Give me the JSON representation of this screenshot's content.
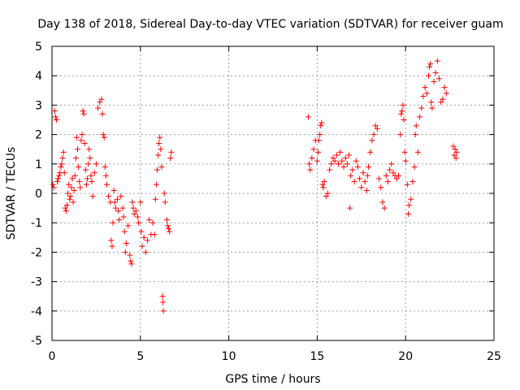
{
  "chart_data": {
    "type": "scatter",
    "title": "Day 138 of 2018, Sidereal Day-to-day VTEC variation (SDTVAR) for receiver guam",
    "xlabel": "GPS time / hours",
    "ylabel": "SDTVAR / TECUs",
    "xlim": [
      0,
      25
    ],
    "ylim": [
      -5,
      5
    ],
    "xticks": [
      0,
      5,
      10,
      15,
      20,
      25
    ],
    "yticks": [
      -5,
      -4,
      -3,
      -2,
      -1,
      0,
      1,
      2,
      3,
      4,
      5
    ],
    "xtick_labels": [
      "0",
      "5",
      "10",
      "15",
      "20",
      "25"
    ],
    "ytick_labels": [
      "-5",
      "-4",
      "-3",
      "-2",
      "-1",
      "0",
      "1",
      "2",
      "3",
      "4",
      "5"
    ],
    "grid": true,
    "marker": "plus",
    "color": "#ff0000",
    "series": [
      {
        "name": "SDTVAR",
        "points": [
          [
            0.05,
            0.3
          ],
          [
            0.1,
            0.2
          ],
          [
            0.15,
            2.8
          ],
          [
            0.2,
            2.6
          ],
          [
            0.25,
            2.5
          ],
          [
            0.3,
            0.4
          ],
          [
            0.35,
            0.5
          ],
          [
            0.4,
            0.6
          ],
          [
            0.45,
            0.7
          ],
          [
            0.5,
            0.9
          ],
          [
            0.55,
            1.0
          ],
          [
            0.6,
            1.2
          ],
          [
            0.65,
            1.4
          ],
          [
            0.7,
            0.7
          ],
          [
            0.75,
            -0.5
          ],
          [
            0.8,
            -0.6
          ],
          [
            0.85,
            -0.4
          ],
          [
            0.9,
            0.0
          ],
          [
            0.95,
            0.3
          ],
          [
            1.0,
            -0.2
          ],
          [
            1.05,
            -0.1
          ],
          [
            1.1,
            0.2
          ],
          [
            1.15,
            0.5
          ],
          [
            1.2,
            -0.3
          ],
          [
            1.25,
            0.1
          ],
          [
            1.3,
            0.6
          ],
          [
            1.35,
            1.2
          ],
          [
            1.4,
            1.9
          ],
          [
            1.45,
            1.5
          ],
          [
            1.5,
            0.9
          ],
          [
            1.55,
            0.4
          ],
          [
            1.6,
            0.2
          ],
          [
            1.65,
            1.8
          ],
          [
            1.7,
            2.0
          ],
          [
            1.75,
            2.8
          ],
          [
            1.8,
            2.7
          ],
          [
            1.85,
            1.7
          ],
          [
            1.9,
            0.8
          ],
          [
            1.95,
            0.3
          ],
          [
            2.0,
            0.5
          ],
          [
            2.05,
            1.0
          ],
          [
            2.1,
            1.5
          ],
          [
            2.15,
            1.2
          ],
          [
            2.2,
            0.6
          ],
          [
            2.25,
            0.4
          ],
          [
            2.3,
            -0.1
          ],
          [
            2.4,
            0.7
          ],
          [
            2.5,
            1.0
          ],
          [
            2.6,
            2.9
          ],
          [
            2.7,
            3.1
          ],
          [
            2.8,
            3.2
          ],
          [
            2.85,
            2.7
          ],
          [
            2.9,
            2.0
          ],
          [
            2.95,
            1.9
          ],
          [
            3.0,
            0.9
          ],
          [
            3.05,
            0.6
          ],
          [
            3.1,
            0.3
          ],
          [
            3.2,
            -0.1
          ],
          [
            3.3,
            -0.3
          ],
          [
            3.35,
            -1.6
          ],
          [
            3.4,
            -1.8
          ],
          [
            3.45,
            -1.0
          ],
          [
            3.5,
            0.1
          ],
          [
            3.55,
            -0.3
          ],
          [
            3.6,
            -0.5
          ],
          [
            3.7,
            -0.2
          ],
          [
            3.75,
            -0.6
          ],
          [
            3.8,
            -0.9
          ],
          [
            3.9,
            -0.1
          ],
          [
            4.0,
            -0.5
          ],
          [
            4.05,
            -0.8
          ],
          [
            4.1,
            -1.3
          ],
          [
            4.15,
            -2.0
          ],
          [
            4.2,
            -1.7
          ],
          [
            4.3,
            -1.1
          ],
          [
            4.4,
            -2.1
          ],
          [
            4.45,
            -2.3
          ],
          [
            4.5,
            -2.4
          ],
          [
            4.55,
            -0.3
          ],
          [
            4.6,
            -0.5
          ],
          [
            4.65,
            -0.7
          ],
          [
            4.75,
            -0.6
          ],
          [
            4.85,
            -0.8
          ],
          [
            4.9,
            -1.0
          ],
          [
            5.0,
            -0.3
          ],
          [
            5.05,
            -1.3
          ],
          [
            5.1,
            -1.8
          ],
          [
            5.2,
            -1.5
          ],
          [
            5.3,
            -2.0
          ],
          [
            5.4,
            -1.6
          ],
          [
            5.5,
            -0.9
          ],
          [
            5.6,
            -1.4
          ],
          [
            5.7,
            -1.0
          ],
          [
            5.8,
            -1.4
          ],
          [
            5.85,
            -0.2
          ],
          [
            5.9,
            0.3
          ],
          [
            5.95,
            0.8
          ],
          [
            6.0,
            1.3
          ],
          [
            6.05,
            1.7
          ],
          [
            6.1,
            1.9
          ],
          [
            6.15,
            1.5
          ],
          [
            6.2,
            0.9
          ],
          [
            6.25,
            -3.5
          ],
          [
            6.28,
            -3.7
          ],
          [
            6.3,
            -4.0
          ],
          [
            6.35,
            0.0
          ],
          [
            6.4,
            -0.3
          ],
          [
            6.5,
            -0.9
          ],
          [
            6.55,
            -1.1
          ],
          [
            6.6,
            -1.2
          ],
          [
            6.65,
            -1.3
          ],
          [
            6.7,
            1.2
          ],
          [
            6.75,
            1.4
          ],
          [
            14.5,
            2.6
          ],
          [
            14.55,
            1.0
          ],
          [
            14.6,
            0.8
          ],
          [
            14.7,
            1.2
          ],
          [
            14.8,
            1.5
          ],
          [
            14.9,
            1.8
          ],
          [
            15.0,
            1.1
          ],
          [
            15.05,
            1.4
          ],
          [
            15.1,
            1.8
          ],
          [
            15.15,
            2.0
          ],
          [
            15.2,
            2.3
          ],
          [
            15.25,
            2.4
          ],
          [
            15.3,
            0.3
          ],
          [
            15.35,
            0.2
          ],
          [
            15.4,
            0.4
          ],
          [
            15.5,
            -0.1
          ],
          [
            15.6,
            0.0
          ],
          [
            15.7,
            0.8
          ],
          [
            15.8,
            1.0
          ],
          [
            15.9,
            1.2
          ],
          [
            16.0,
            1.1
          ],
          [
            16.1,
            1.3
          ],
          [
            16.2,
            1.0
          ],
          [
            16.3,
            1.4
          ],
          [
            16.4,
            1.1
          ],
          [
            16.5,
            0.9
          ],
          [
            16.6,
            1.2
          ],
          [
            16.7,
            1.0
          ],
          [
            16.8,
            1.3
          ],
          [
            16.85,
            -0.5
          ],
          [
            16.9,
            0.6
          ],
          [
            17.0,
            0.8
          ],
          [
            17.1,
            0.4
          ],
          [
            17.2,
            1.1
          ],
          [
            17.3,
            0.9
          ],
          [
            17.4,
            0.5
          ],
          [
            17.5,
            0.2
          ],
          [
            17.6,
            0.7
          ],
          [
            17.7,
            0.4
          ],
          [
            17.8,
            0.1
          ],
          [
            17.85,
            0.6
          ],
          [
            17.9,
            0.9
          ],
          [
            18.0,
            1.4
          ],
          [
            18.1,
            1.8
          ],
          [
            18.2,
            2.0
          ],
          [
            18.3,
            2.3
          ],
          [
            18.4,
            2.2
          ],
          [
            18.5,
            0.5
          ],
          [
            18.6,
            0.2
          ],
          [
            18.7,
            -0.3
          ],
          [
            18.8,
            -0.5
          ],
          [
            18.9,
            0.6
          ],
          [
            19.0,
            0.4
          ],
          [
            19.1,
            0.8
          ],
          [
            19.2,
            1.0
          ],
          [
            19.3,
            0.7
          ],
          [
            19.4,
            0.6
          ],
          [
            19.5,
            0.5
          ],
          [
            19.6,
            0.6
          ],
          [
            19.7,
            2.0
          ],
          [
            19.75,
            2.7
          ],
          [
            19.8,
            2.8
          ],
          [
            19.85,
            3.0
          ],
          [
            19.9,
            2.5
          ],
          [
            19.95,
            1.4
          ],
          [
            20.0,
            1.1
          ],
          [
            20.1,
            0.3
          ],
          [
            20.15,
            -0.7
          ],
          [
            20.2,
            -0.4
          ],
          [
            20.3,
            -0.2
          ],
          [
            20.4,
            0.4
          ],
          [
            20.5,
            0.9
          ],
          [
            20.55,
            2.0
          ],
          [
            20.6,
            2.3
          ],
          [
            20.7,
            1.4
          ],
          [
            20.8,
            2.6
          ],
          [
            20.9,
            2.9
          ],
          [
            21.0,
            3.3
          ],
          [
            21.1,
            3.6
          ],
          [
            21.2,
            3.4
          ],
          [
            21.3,
            4.0
          ],
          [
            21.35,
            4.3
          ],
          [
            21.4,
            4.4
          ],
          [
            21.45,
            3.1
          ],
          [
            21.5,
            2.9
          ],
          [
            21.6,
            3.8
          ],
          [
            21.7,
            4.1
          ],
          [
            21.8,
            4.5
          ],
          [
            21.9,
            3.9
          ],
          [
            22.0,
            3.1
          ],
          [
            22.1,
            3.2
          ],
          [
            22.2,
            3.6
          ],
          [
            22.3,
            3.4
          ],
          [
            22.7,
            1.6
          ],
          [
            22.75,
            1.3
          ],
          [
            22.8,
            1.5
          ],
          [
            22.85,
            1.2
          ],
          [
            22.9,
            1.4
          ]
        ]
      }
    ]
  }
}
